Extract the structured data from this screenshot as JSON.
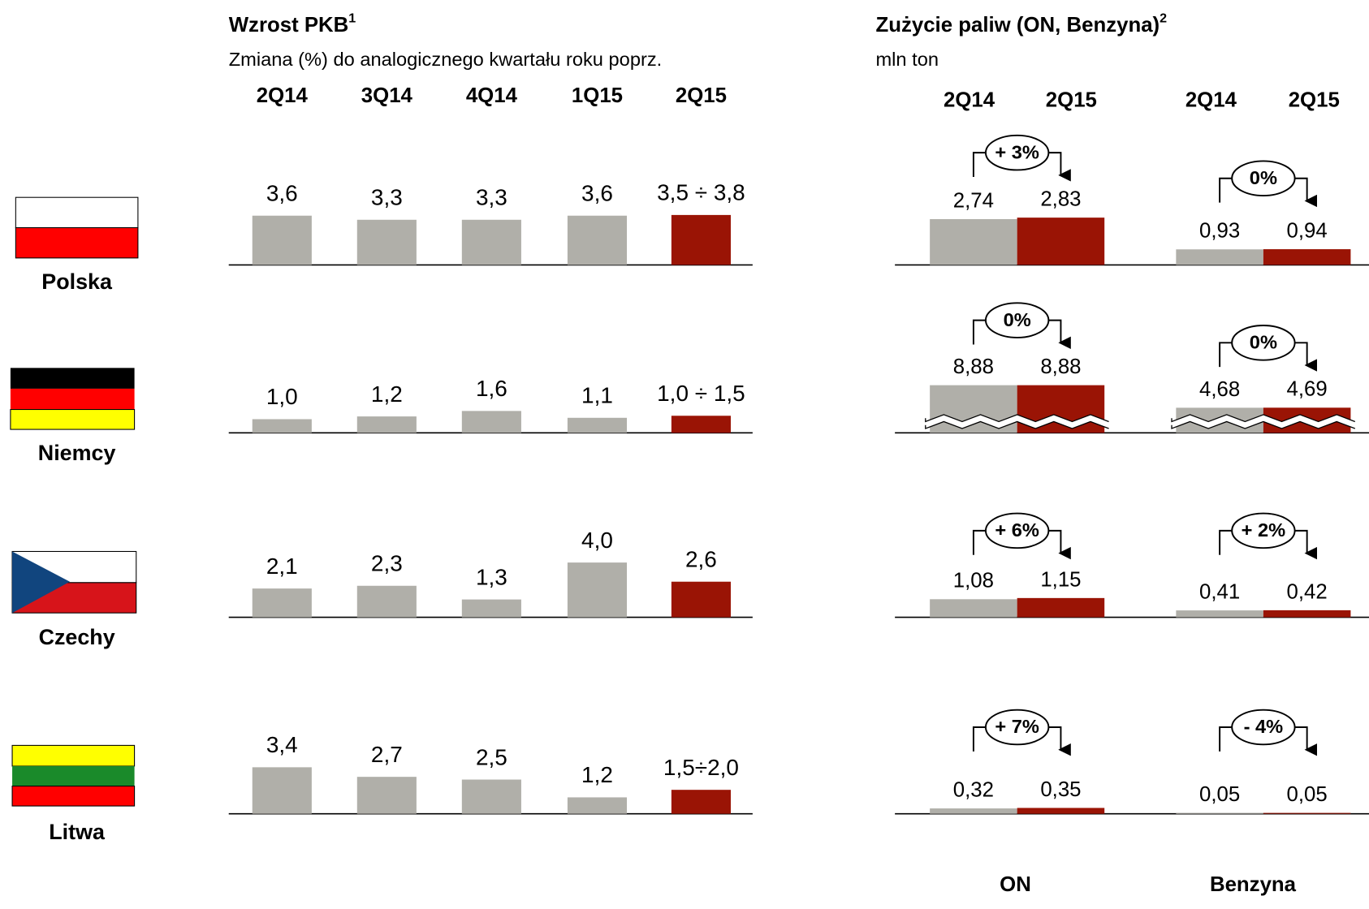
{
  "gdp": {
    "title": "Wzrost PKB",
    "title_sup": "1",
    "subtitle": "Zmiana (%) do analogicznego kwartału roku poprz.",
    "quarters": [
      "2Q14",
      "3Q14",
      "4Q14",
      "1Q15",
      "2Q15"
    ],
    "countries": [
      {
        "name": "Polska",
        "values": [
          3.6,
          3.3,
          3.3,
          3.6
        ],
        "value_labels": [
          "3,6",
          "3,3",
          "3,3",
          "3,6"
        ],
        "forecast": {
          "low": 3.5,
          "high": 3.8,
          "label": "3,5 ÷ 3,8"
        }
      },
      {
        "name": "Niemcy",
        "values": [
          1.0,
          1.2,
          1.6,
          1.1
        ],
        "value_labels": [
          "1,0",
          "1,2",
          "1,6",
          "1,1"
        ],
        "forecast": {
          "low": 1.0,
          "high": 1.5,
          "label": "1,0 ÷ 1,5"
        }
      },
      {
        "name": "Czechy",
        "values": [
          2.1,
          2.3,
          1.3,
          4.0,
          2.6
        ],
        "value_labels": [
          "2,1",
          "2,3",
          "1,3",
          "4,0",
          "2,6"
        ]
      },
      {
        "name": "Litwa",
        "values": [
          3.4,
          2.7,
          2.5,
          1.2
        ],
        "value_labels": [
          "3,4",
          "2,7",
          "2,5",
          "1,2"
        ],
        "forecast": {
          "low": 1.5,
          "high": 2.0,
          "label": "1,5÷2,0"
        }
      }
    ]
  },
  "fuel": {
    "title": "Zużycie paliw (ON, Benzyna)",
    "title_sup": "2",
    "subtitle": "mln ton",
    "periods": [
      "2Q14",
      "2Q15",
      "2Q14",
      "2Q15"
    ],
    "groups": [
      "ON",
      "Benzyna"
    ],
    "countries": [
      {
        "on": {
          "values": [
            2.74,
            2.83
          ],
          "value_labels": [
            "2,74",
            "2,83"
          ],
          "change": "+ 3%"
        },
        "benzyna": {
          "values": [
            0.93,
            0.94
          ],
          "value_labels": [
            "0,93",
            "0,94"
          ],
          "change": "0%"
        }
      },
      {
        "broken_axis": true,
        "on": {
          "values": [
            8.88,
            8.88
          ],
          "value_labels": [
            "8,88",
            "8,88"
          ],
          "change": "0%"
        },
        "benzyna": {
          "values": [
            4.68,
            4.69
          ],
          "value_labels": [
            "4,68",
            "4,69"
          ],
          "change": "0%"
        }
      },
      {
        "on": {
          "values": [
            1.08,
            1.15
          ],
          "value_labels": [
            "1,08",
            "1,15"
          ],
          "change": "+ 6%"
        },
        "benzyna": {
          "values": [
            0.41,
            0.42
          ],
          "value_labels": [
            "0,41",
            "0,42"
          ],
          "change": "+ 2%"
        }
      },
      {
        "on": {
          "values": [
            0.32,
            0.35
          ],
          "value_labels": [
            "0,32",
            "0,35"
          ],
          "change": "+ 7%"
        },
        "benzyna": {
          "values": [
            0.05,
            0.05
          ],
          "value_labels": [
            "0,05",
            "0,05"
          ],
          "change": "- 4%"
        }
      }
    ]
  },
  "colors": {
    "past": "#b0afa9",
    "current": "#9a1405"
  }
}
